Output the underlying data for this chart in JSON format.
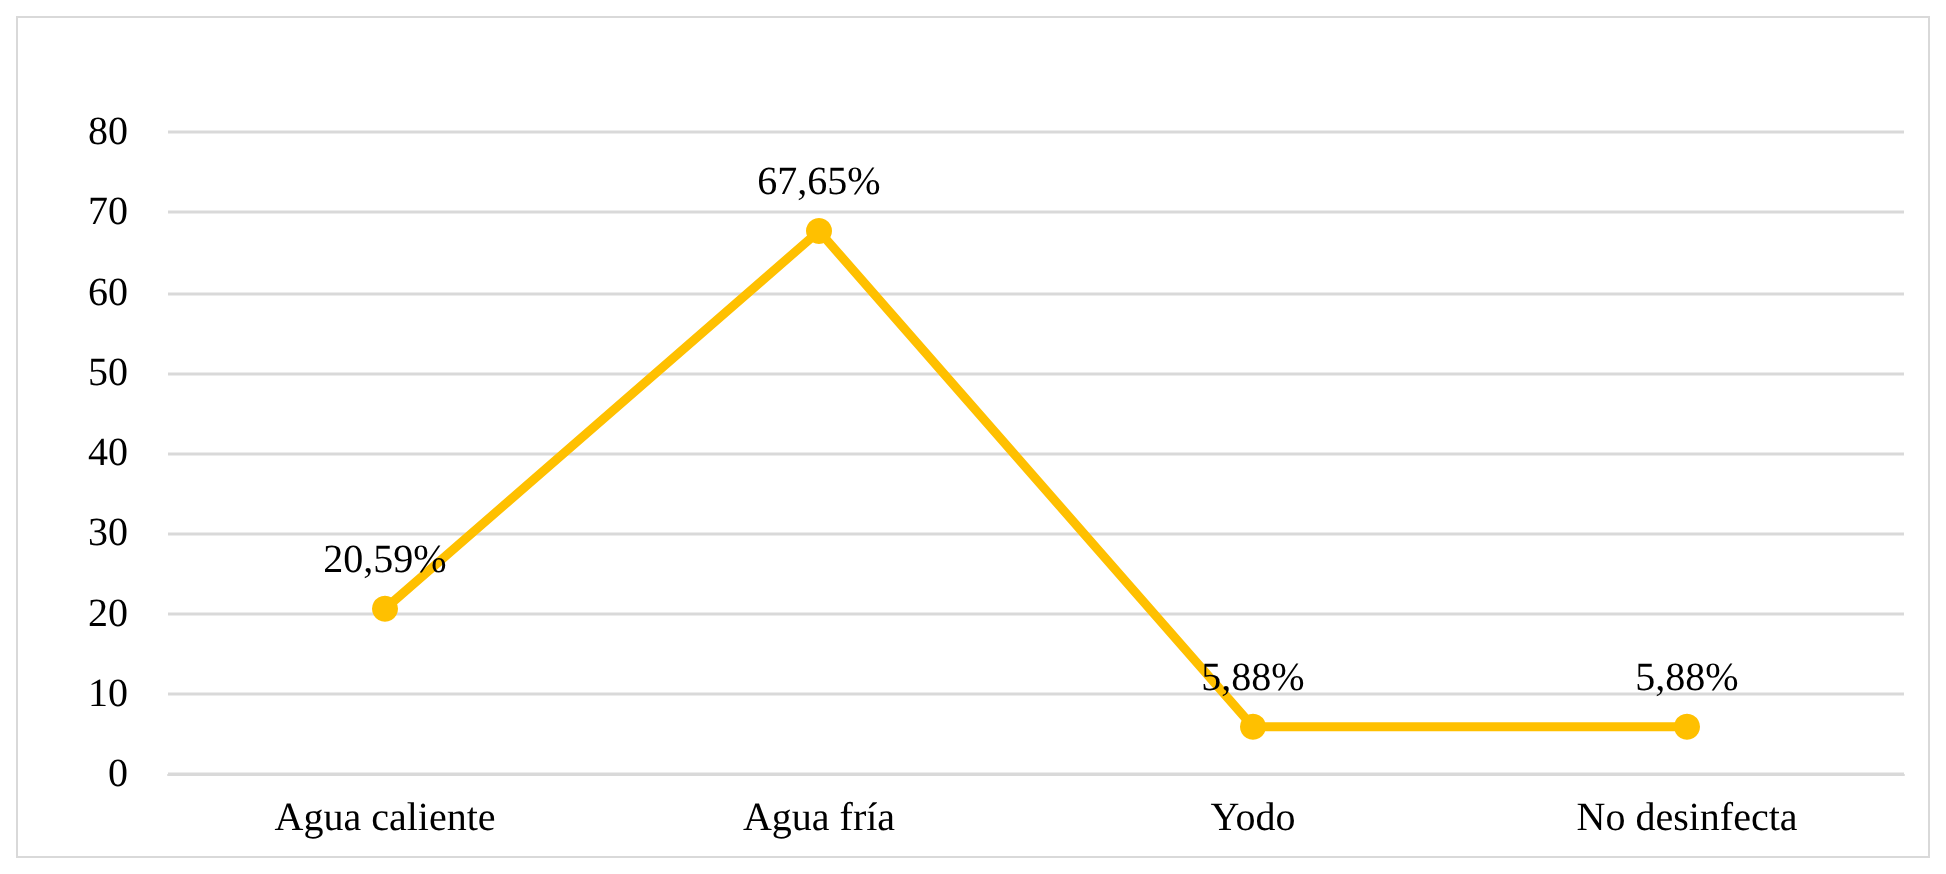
{
  "chart_data": {
    "type": "line",
    "categories": [
      "Agua caliente",
      "Agua fría",
      "Yodo",
      "No desinfecta"
    ],
    "series": [
      {
        "color": "#ffc000",
        "values": [
          20.59,
          67.65,
          5.88,
          5.88
        ],
        "value_labels": [
          "20,59%",
          "67,65%",
          "5,88%",
          "5,88%"
        ]
      }
    ],
    "ylim": [
      0,
      80
    ],
    "yticks": [
      0,
      10,
      20,
      30,
      40,
      50,
      60,
      70,
      80
    ],
    "grid": "y",
    "marker": "circle",
    "line_style": "solid"
  }
}
